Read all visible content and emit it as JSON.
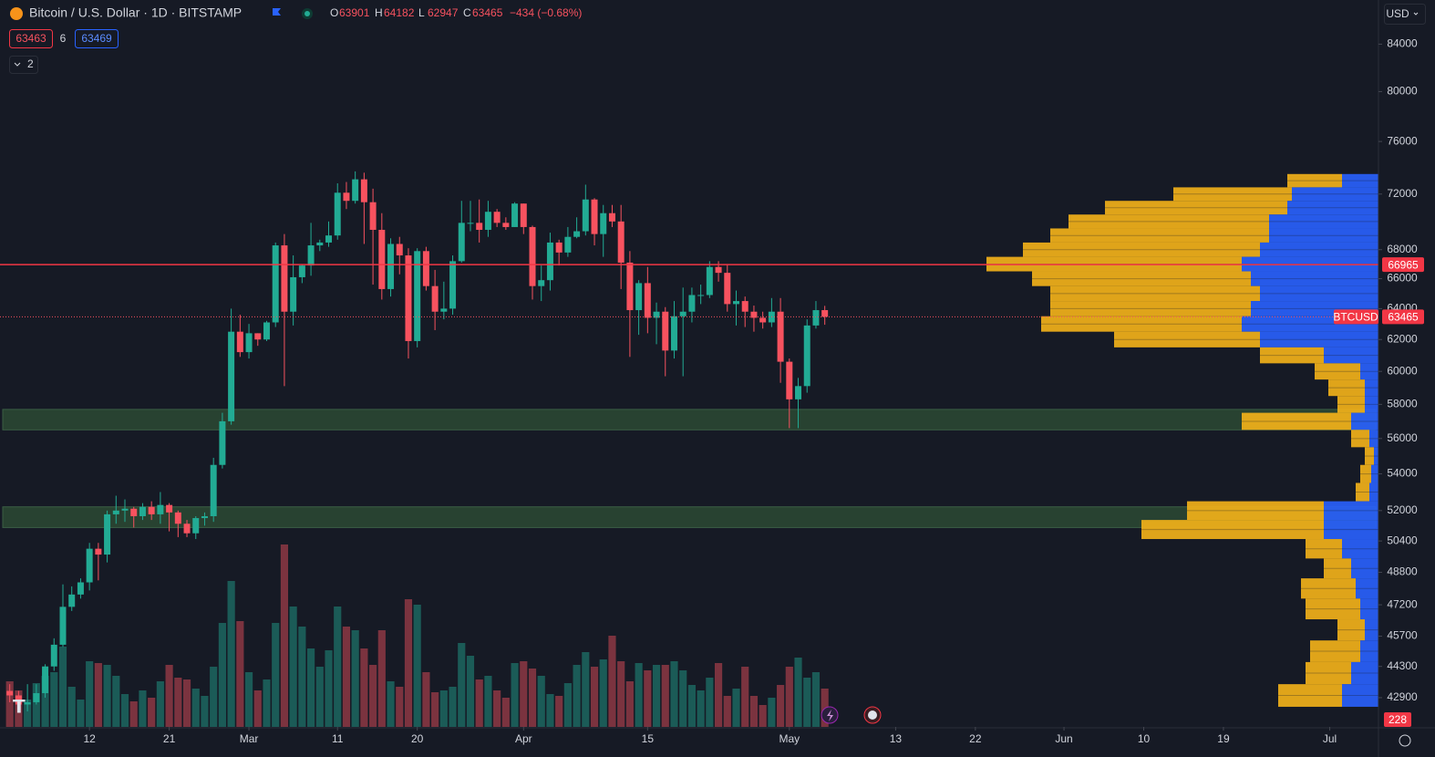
{
  "header": {
    "symbol": "Bitcoin / U.S. Dollar · 1D · BITSTAMP",
    "ohlc": [
      {
        "k": "O",
        "v": "63901"
      },
      {
        "k": "H",
        "v": "64182"
      },
      {
        "k": "L",
        "v": "62947"
      },
      {
        "k": "C",
        "v": "63465"
      }
    ],
    "change": "−434 (−0.68%)",
    "sell": "63463",
    "spread": "6",
    "buy": "63469",
    "collapsed": "2",
    "currency": "USD"
  },
  "chart_data": {
    "type": "candlestick",
    "log_scale": true,
    "ylim": [
      41630,
      87900
    ],
    "yticks": [
      84000,
      80000,
      76000,
      72000,
      68000,
      66000,
      64000,
      62000,
      60000,
      58000,
      56000,
      54000,
      52000,
      50400,
      48800,
      47200,
      45700,
      44300,
      42900
    ],
    "xlim": [
      -1.1,
      154.5
    ],
    "xticks": [
      {
        "value": 9,
        "label": "12"
      },
      {
        "value": 18,
        "label": "21"
      },
      {
        "value": 27,
        "label": "Mar"
      },
      {
        "value": 37,
        "label": "11"
      },
      {
        "value": 46,
        "label": "20"
      },
      {
        "value": 58,
        "label": "Apr"
      },
      {
        "value": 72,
        "label": "15"
      },
      {
        "value": 88,
        "label": "May"
      },
      {
        "value": 100,
        "label": "13"
      },
      {
        "value": 109,
        "label": "22"
      },
      {
        "value": 119,
        "label": "Jun"
      },
      {
        "value": 128,
        "label": "10"
      },
      {
        "value": 137,
        "label": "19"
      },
      {
        "value": 149,
        "label": "Jul"
      }
    ],
    "up_color": "#22ab94",
    "down_color": "#f7525f",
    "open": [
      43200,
      43000,
      42600,
      42700,
      43100,
      44300,
      45300,
      47100,
      47700,
      48300,
      50000,
      49700,
      51800,
      52000,
      52100,
      51700,
      52200,
      51800,
      52300,
      51900,
      51300,
      50800,
      51600,
      51700,
      54500,
      57000,
      62500,
      61200,
      62400,
      62000,
      63100,
      68300,
      63800,
      66100,
      66900,
      68300,
      68500,
      69000,
      72100,
      71500,
      73100,
      71400,
      69400,
      65300,
      68400,
      67600,
      61900,
      67900,
      65500,
      63800,
      64000,
      67200,
      69900,
      69900,
      69400,
      70700,
      69900,
      69600,
      71300,
      69600,
      65500,
      65900,
      68500,
      67800,
      68900,
      69300,
      71600,
      69100,
      70600,
      70000,
      67100,
      63900,
      65700,
      63400,
      63800,
      61300,
      63500,
      63800,
      64900,
      64900,
      66800,
      66400,
      64300,
      64500,
      63800,
      63400,
      63100,
      63800,
      60600,
      58300,
      59100,
      62900,
      63901
    ],
    "high": [
      43500,
      43200,
      43500,
      43500,
      44400,
      45600,
      48200,
      48100,
      48500,
      50300,
      50300,
      52000,
      52800,
      52600,
      52200,
      52400,
      52500,
      53000,
      52400,
      52000,
      51500,
      51700,
      51900,
      54900,
      57500,
      64000,
      63600,
      63000,
      62400,
      63200,
      68500,
      69100,
      67600,
      67000,
      69900,
      68700,
      70000,
      72800,
      72900,
      73700,
      73600,
      72400,
      70600,
      68800,
      68900,
      68100,
      68100,
      68200,
      66600,
      65800,
      67600,
      71500,
      71500,
      71600,
      71500,
      70900,
      70300,
      71400,
      71300,
      69700,
      66900,
      69200,
      68700,
      69600,
      70300,
      72700,
      71700,
      71200,
      71200,
      71200,
      67900,
      65900,
      66800,
      64400,
      64100,
      64500,
      65400,
      65400,
      65600,
      67200,
      67200,
      67000,
      65200,
      64800,
      64200,
      63800,
      64700,
      64700,
      60800,
      59600,
      63300,
      64500,
      64182
    ],
    "low": [
      42700,
      42300,
      42300,
      42600,
      42900,
      44100,
      45200,
      46900,
      47500,
      47900,
      48400,
      49300,
      51300,
      51400,
      51100,
      51500,
      51500,
      51300,
      50900,
      50600,
      50600,
      50500,
      51200,
      51400,
      54300,
      56800,
      60900,
      60800,
      61600,
      61900,
      62800,
      59100,
      62900,
      65700,
      66200,
      67900,
      68200,
      68700,
      70900,
      71300,
      68400,
      65600,
      64600,
      64800,
      66300,
      60800,
      61500,
      65200,
      62600,
      63300,
      63600,
      67100,
      69300,
      68500,
      68900,
      69600,
      69400,
      69600,
      69100,
      64600,
      64500,
      65200,
      66900,
      67500,
      68800,
      69000,
      68300,
      67500,
      69600,
      65300,
      60900,
      62300,
      62400,
      61700,
      59700,
      60800,
      59700,
      63100,
      64300,
      64700,
      65800,
      63800,
      62900,
      62800,
      62500,
      62700,
      62800,
      59300,
      56600,
      56600,
      58700,
      62700,
      62947
    ],
    "close": [
      43000,
      42600,
      42700,
      43100,
      44300,
      45300,
      47100,
      47700,
      48300,
      50000,
      49700,
      51800,
      52000,
      52100,
      51700,
      52200,
      51800,
      52300,
      51900,
      51300,
      50800,
      51600,
      51700,
      54500,
      57000,
      62500,
      61200,
      62400,
      62000,
      63100,
      68300,
      63800,
      66100,
      66900,
      68300,
      68500,
      69000,
      72100,
      71500,
      73100,
      71400,
      69400,
      65300,
      68400,
      67600,
      61900,
      67900,
      65500,
      63800,
      64000,
      67200,
      69900,
      69900,
      69400,
      70700,
      69900,
      69600,
      71300,
      69600,
      65500,
      65900,
      68500,
      67800,
      68900,
      69300,
      71600,
      69100,
      70600,
      70000,
      67100,
      63900,
      65700,
      63400,
      63800,
      61300,
      63500,
      63800,
      64900,
      64900,
      66800,
      66400,
      64300,
      64500,
      63800,
      63400,
      63100,
      63800,
      60600,
      58300,
      59100,
      62900,
      63900,
      63465
    ],
    "volume": [
      25,
      20,
      15,
      24,
      28,
      30,
      44,
      22,
      15,
      36,
      35,
      34,
      28,
      18,
      14,
      20,
      16,
      25,
      34,
      27,
      26,
      21,
      17,
      33,
      57,
      80,
      58,
      30,
      20,
      26,
      57,
      100,
      66,
      55,
      43,
      33,
      42,
      66,
      55,
      53,
      43,
      34,
      53,
      25,
      22,
      70,
      67,
      30,
      19,
      20,
      22,
      46,
      39,
      26,
      28,
      20,
      16,
      35,
      36,
      32,
      28,
      18,
      17,
      24,
      34,
      41,
      33,
      37,
      50,
      36,
      25,
      35,
      31,
      34,
      34,
      36,
      31,
      23,
      20,
      27,
      35,
      17,
      21,
      33,
      17,
      12,
      16,
      23,
      33,
      38,
      27,
      30,
      21
    ],
    "volume_lim": [
      0,
      100
    ],
    "volume_label": "228",
    "level": 66965,
    "level_color": "#f23645",
    "last_name": "BTCUSD",
    "last": 63465,
    "zones": [
      {
        "from": 56500,
        "to": 57700
      },
      {
        "from": 51100,
        "to": 52200
      }
    ],
    "zone_color": "#2b4a34",
    "profile": {
      "up_color": "#2962ff",
      "down_color": "#f5b41a",
      "prices": [
        73000,
        72000,
        71000,
        70000,
        69000,
        68000,
        67000,
        66000,
        65000,
        64000,
        63000,
        62000,
        61000,
        60000,
        59000,
        58000,
        57000,
        56000,
        55000,
        54000,
        53000,
        52000,
        51000,
        50000,
        49000,
        48000,
        47000,
        46000,
        45000,
        44000,
        43000
      ],
      "up": [
        40,
        95,
        100,
        120,
        120,
        130,
        150,
        140,
        130,
        140,
        150,
        130,
        60,
        20,
        15,
        15,
        30,
        10,
        5,
        8,
        10,
        60,
        60,
        40,
        30,
        25,
        20,
        15,
        20,
        30,
        40
      ],
      "down": [
        60,
        130,
        200,
        220,
        240,
        260,
        280,
        240,
        230,
        220,
        220,
        160,
        70,
        50,
        40,
        30,
        120,
        20,
        10,
        12,
        15,
        150,
        200,
        40,
        30,
        60,
        60,
        30,
        55,
        50,
        70
      ]
    }
  }
}
